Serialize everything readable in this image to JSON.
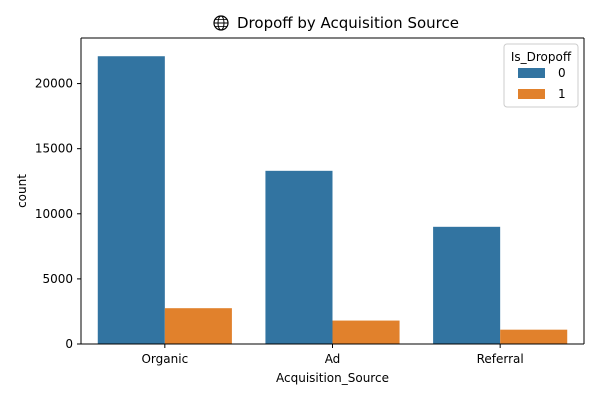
{
  "chart_data": {
    "type": "bar",
    "title": "Dropoff by Acquisition Source",
    "title_icon": "globe-icon",
    "xlabel": "Acquisition_Source",
    "ylabel": "count",
    "categories": [
      "Organic",
      "Ad",
      "Referral"
    ],
    "series": [
      {
        "name": "0",
        "values": [
          22100,
          13300,
          9000
        ],
        "color": "#3274a1"
      },
      {
        "name": "1",
        "values": [
          2750,
          1800,
          1100
        ],
        "color": "#e1812c"
      }
    ],
    "ylim": [
      0,
      23500
    ],
    "yticks": [
      0,
      5000,
      10000,
      15000,
      20000
    ],
    "legend": {
      "title": "Is_Dropoff",
      "position": "top-right"
    },
    "grid": false
  }
}
